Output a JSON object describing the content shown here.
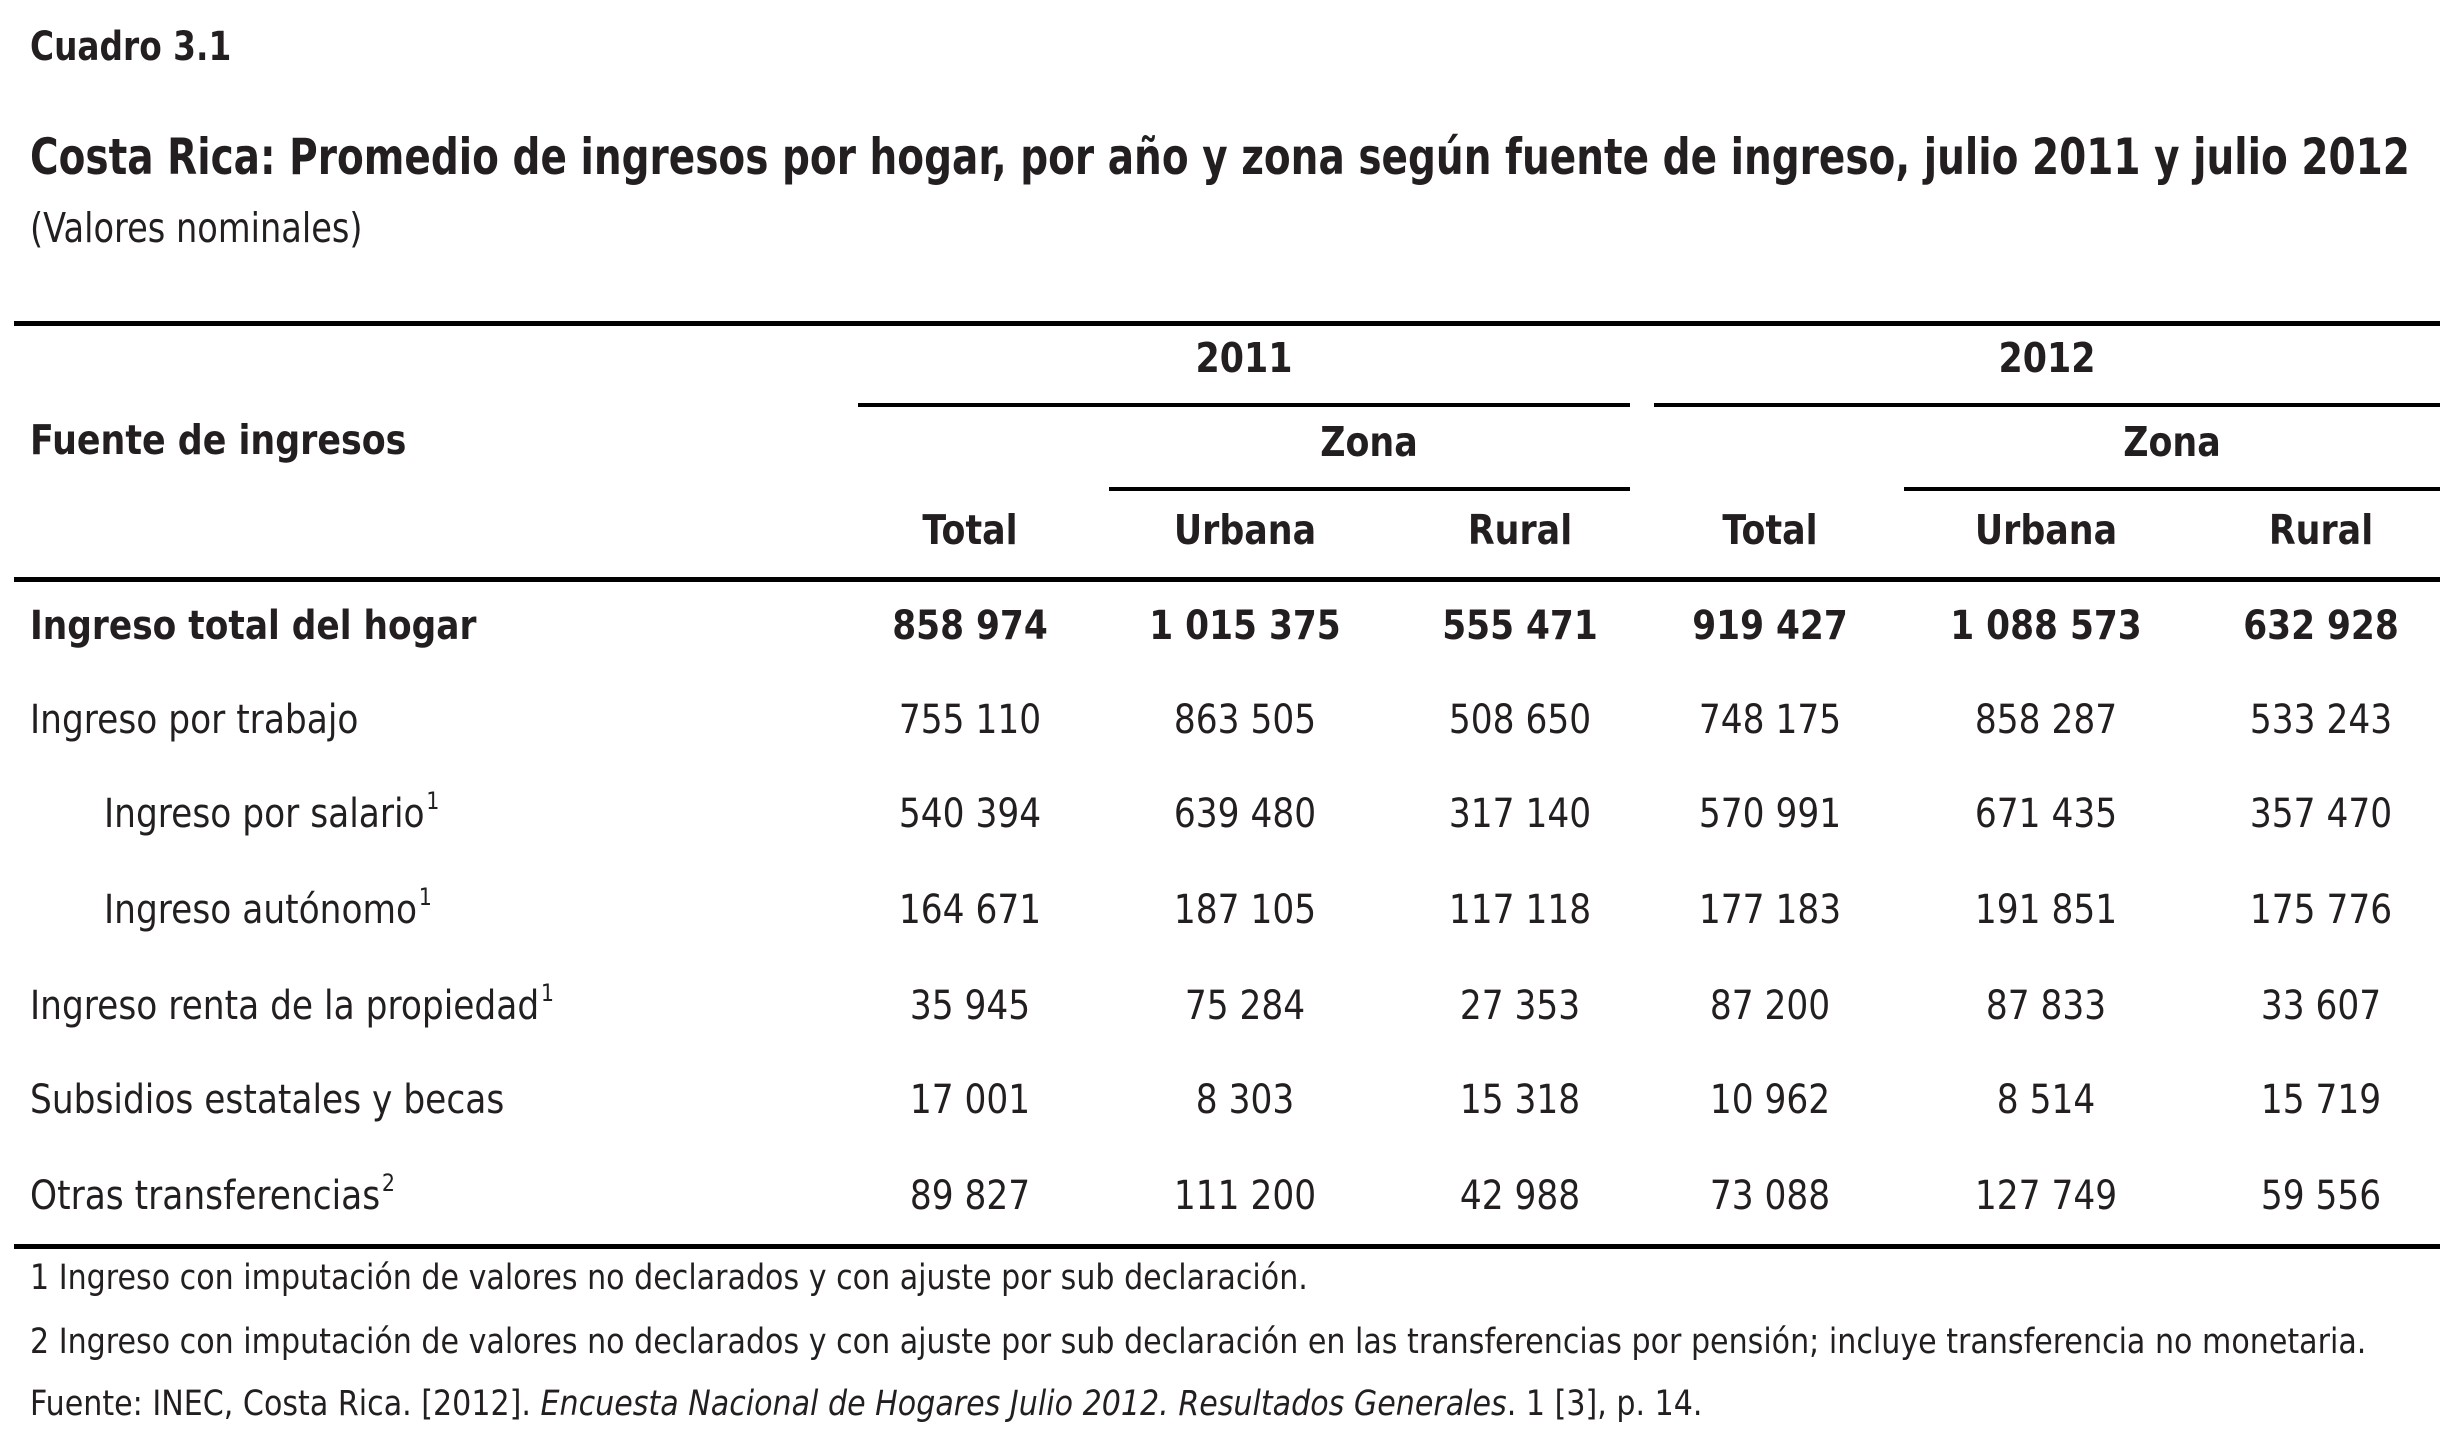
{
  "table_label": "Cuadro 3.1",
  "title": "Costa Rica: Promedio de ingresos por hogar, por año y zona según fuente de ingreso, julio 2011 y julio 2012",
  "subtitle": "(Valores nominales)",
  "header": {
    "row_header": "Fuente de ingresos",
    "years": [
      "2011",
      "2012"
    ],
    "zona": "Zona",
    "columns": [
      "Total",
      "Urbana",
      "Rural",
      "Total",
      "Urbana",
      "Rural"
    ]
  },
  "rows": [
    {
      "label": "Ingreso total del hogar",
      "sup": "",
      "values": [
        "858 974",
        "1 015 375",
        "555 471",
        "919 427",
        "1 088 573",
        "632 928"
      ]
    },
    {
      "label": "Ingreso por trabajo",
      "sup": "",
      "values": [
        "755 110",
        "863 505",
        "508 650",
        "748 175",
        "858 287",
        "533 243"
      ]
    },
    {
      "label": "Ingreso por salario",
      "sup": "1",
      "values": [
        "540 394",
        "639 480",
        "317 140",
        "570 991",
        "671 435",
        "357 470"
      ]
    },
    {
      "label": "Ingreso autónomo",
      "sup": "1",
      "values": [
        "164 671",
        "187 105",
        "117 118",
        "177 183",
        "191 851",
        "175 776"
      ]
    },
    {
      "label": "Ingreso renta de la propiedad",
      "sup": "1",
      "values": [
        "35 945",
        "75 284",
        "27 353",
        "87 200",
        "87 833",
        "33 607"
      ]
    },
    {
      "label": "Subsidios estatales y becas",
      "sup": "",
      "values": [
        "17 001",
        "8 303",
        "15 318",
        "10 962",
        "8 514",
        "15 719"
      ]
    },
    {
      "label": "Otras transferencias",
      "sup": "2",
      "values": [
        "89 827",
        "111 200",
        "42 988",
        "73 088",
        "127 749",
        "59 556"
      ]
    }
  ],
  "footnotes": {
    "note1": "1 Ingreso con imputación de valores no declarados y con ajuste por sub declaración.",
    "note2": "2 Ingreso con imputación de valores no declarados y con ajuste por sub declaración en las transferencias por pensión; incluye transferencia no monetaria.",
    "source_prefix": "Fuente: INEC, Costa Rica. [2012]. ",
    "source_title": "Encuesta Nacional de Hogares Julio 2012. Resultados Generales",
    "source_suffix": ". 1 [3], p. 14."
  }
}
